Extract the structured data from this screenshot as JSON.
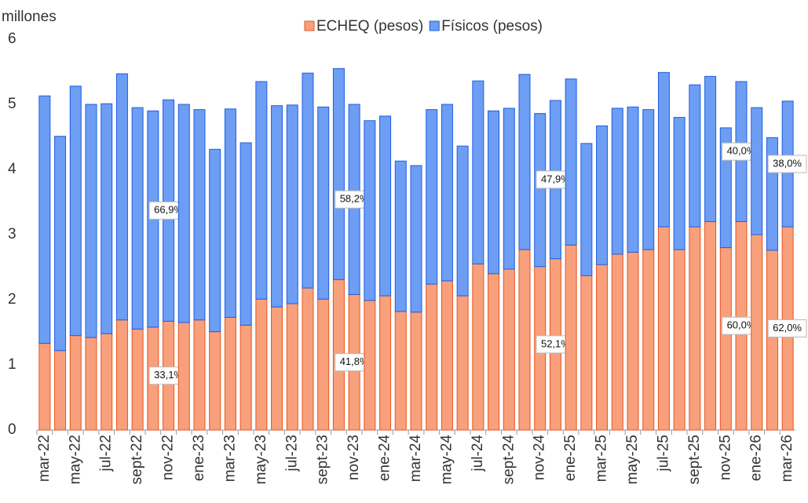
{
  "chart_data": {
    "type": "bar",
    "stacked": true,
    "y_axis_label": "millones",
    "categories": [
      "mar-22",
      null,
      "may-22",
      null,
      "jul-22",
      null,
      "sept-22",
      null,
      "nov-22",
      null,
      "ene-23",
      null,
      "mar-23",
      null,
      "may-23",
      null,
      "jul-23",
      null,
      "sept-23",
      null,
      "nov-23",
      null,
      "ene-24",
      null,
      "mar-24",
      null,
      "may-24",
      null,
      "jul-24",
      null,
      "sept-24",
      null,
      "nov-24",
      null,
      "ene-25",
      null,
      "mar-25",
      null,
      "may-25",
      null,
      "jul-25",
      null,
      "sept-25",
      null,
      "nov-25",
      null,
      "ene-26",
      null,
      "mar-26"
    ],
    "series": [
      {
        "name": "ECHEQ (pesos)",
        "color": "#f8a07c",
        "stroke": "#e8541e",
        "values": [
          1.33,
          1.22,
          1.45,
          1.42,
          1.48,
          1.69,
          1.55,
          1.58,
          1.67,
          1.65,
          1.69,
          1.51,
          1.73,
          1.61,
          2.01,
          1.89,
          1.94,
          2.18,
          2.01,
          2.31,
          2.08,
          1.99,
          2.06,
          1.82,
          1.81,
          2.24,
          2.29,
          2.06,
          2.55,
          2.4,
          2.47,
          2.77,
          2.51,
          2.63,
          2.84,
          2.37,
          2.54,
          2.7,
          2.73,
          2.77,
          3.12,
          2.77,
          3.12,
          3.2,
          2.8,
          3.2,
          3.0,
          2.76,
          3.12
        ],
        "shares": [
          null,
          null,
          null,
          null,
          null,
          null,
          null,
          null,
          "33,1%",
          null,
          null,
          null,
          null,
          null,
          null,
          null,
          null,
          null,
          null,
          null,
          "41,8%",
          null,
          null,
          null,
          null,
          null,
          null,
          null,
          null,
          null,
          null,
          null,
          null,
          "52,1%",
          null,
          null,
          null,
          null,
          null,
          null,
          null,
          null,
          null,
          null,
          null,
          "60,0%",
          null,
          null,
          "62,0%"
        ]
      },
      {
        "name": "Físicos (pesos)",
        "color": "#6d9ef4",
        "stroke": "#1f5ee0",
        "values": [
          3.8,
          3.29,
          3.83,
          3.58,
          3.53,
          3.78,
          3.4,
          3.32,
          3.4,
          3.35,
          3.23,
          2.8,
          3.2,
          2.8,
          3.34,
          3.09,
          3.05,
          3.3,
          2.95,
          3.24,
          2.92,
          2.76,
          2.76,
          2.31,
          2.25,
          2.68,
          2.71,
          2.3,
          2.81,
          2.5,
          2.47,
          2.69,
          2.35,
          2.43,
          2.55,
          2.03,
          2.13,
          2.24,
          2.23,
          2.15,
          2.37,
          2.03,
          2.18,
          2.23,
          1.84,
          2.15,
          1.95,
          1.73,
          1.93
        ],
        "shares": [
          null,
          null,
          null,
          null,
          null,
          null,
          null,
          null,
          "66,9%",
          null,
          null,
          null,
          null,
          null,
          null,
          null,
          null,
          null,
          null,
          null,
          "58,2%",
          null,
          null,
          null,
          null,
          null,
          null,
          null,
          null,
          null,
          null,
          null,
          null,
          "47,9%",
          null,
          null,
          null,
          null,
          null,
          null,
          null,
          null,
          null,
          null,
          null,
          "40,0%",
          null,
          null,
          "38,0%"
        ]
      }
    ],
    "ylim": [
      0,
      6
    ],
    "yticks": [
      0,
      1,
      2,
      3,
      4,
      5,
      6
    ],
    "grid": false,
    "legend": "top"
  }
}
